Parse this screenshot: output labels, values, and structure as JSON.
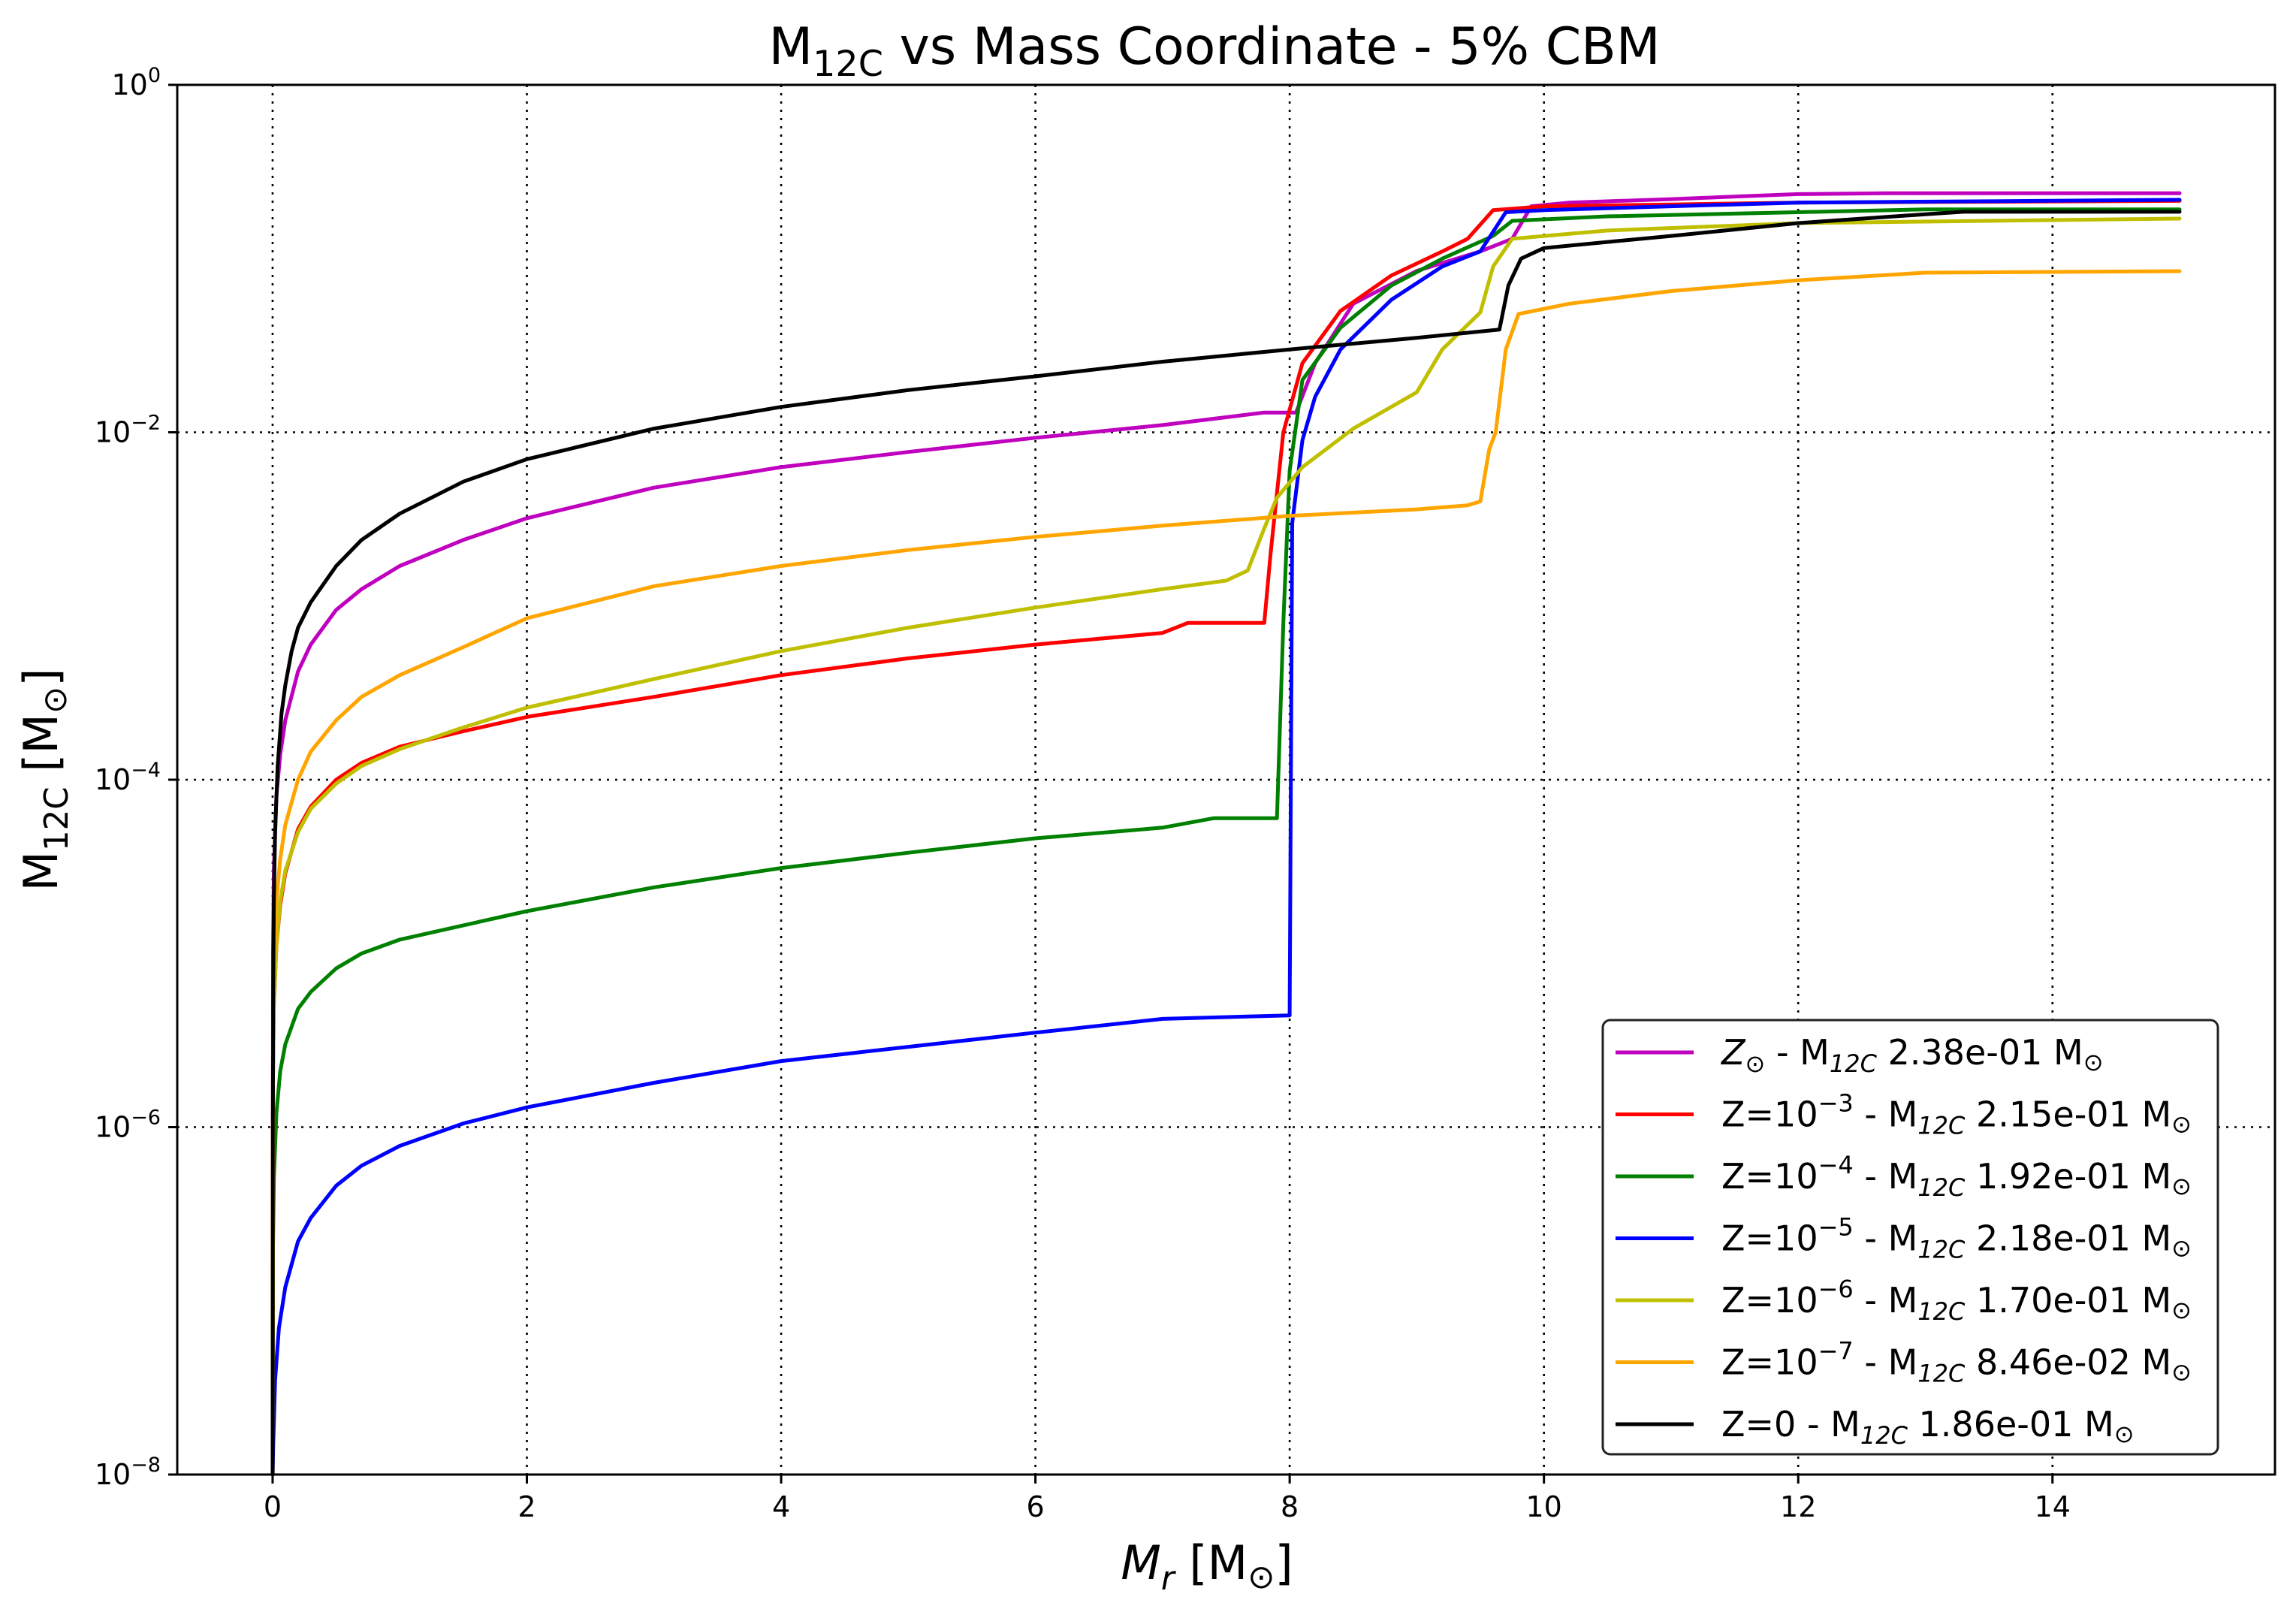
{
  "chart_data": {
    "type": "line",
    "title": {
      "base": "M",
      "sub": "12C",
      "rest": " vs Mass Coordinate - 5% CBM"
    },
    "xlabel": {
      "base": "M",
      "sub": "r",
      "rest": " [M",
      "sun": "⊙",
      "close": "]"
    },
    "ylabel": {
      "base": "M",
      "sub": "12C",
      "rest": " [M",
      "sun": "⊙",
      "close": "]"
    },
    "x_scale": "linear",
    "y_scale": "log",
    "xlim": [
      -0.75,
      15.75
    ],
    "ylim": [
      1e-08,
      1
    ],
    "x_ticks": [
      0,
      2,
      4,
      6,
      8,
      10,
      12,
      14
    ],
    "y_ticks": [
      {
        "value": 1e-08,
        "base": "10",
        "exp": "−8"
      },
      {
        "value": 1e-06,
        "base": "10",
        "exp": "−6"
      },
      {
        "value": 0.0001,
        "base": "10",
        "exp": "−4"
      },
      {
        "value": 0.01,
        "base": "10",
        "exp": "−2"
      },
      {
        "value": 1,
        "base": "10",
        "exp": "0"
      }
    ],
    "grid": true,
    "legend_position": "lower-right",
    "series": [
      {
        "name": "Z⊙ - M12C 2.38e-01 M⊙",
        "legend": {
          "prefix": "Z",
          "prefix_sub": "⊙",
          "exp": "",
          "mid": " - M",
          "mid_sub": "12C",
          "value": " 2.38e-01 M",
          "sun": "⊙"
        },
        "color": "#bf00bf",
        "x": [
          0.0,
          0.003,
          0.01,
          0.03,
          0.06,
          0.1,
          0.2,
          0.3,
          0.5,
          0.7,
          1.0,
          1.5,
          2.0,
          3.0,
          4.0,
          5.0,
          6.0,
          7.0,
          7.8,
          8.05,
          8.2,
          8.5,
          9.0,
          9.5,
          9.75,
          9.9,
          10.2,
          11.0,
          12.0,
          12.7,
          15.0
        ],
        "y": [
          1e-08,
          1e-05,
          3e-05,
          8e-05,
          0.00014,
          0.00022,
          0.00042,
          0.0006,
          0.00095,
          0.00125,
          0.0017,
          0.0024,
          0.0032,
          0.0048,
          0.0063,
          0.0077,
          0.0093,
          0.011,
          0.013,
          0.013,
          0.025,
          0.055,
          0.085,
          0.11,
          0.13,
          0.2,
          0.21,
          0.22,
          0.235,
          0.238,
          0.238
        ]
      },
      {
        "name": "Z=10−3 - M12C 2.15e-01 M⊙",
        "legend": {
          "prefix": "Z=10",
          "prefix_sub": "",
          "exp": "−3",
          "mid": " - M",
          "mid_sub": "12C",
          "value": " 2.15e-01 M",
          "sun": "⊙"
        },
        "color": "#ff0000",
        "x": [
          0.0,
          0.003,
          0.01,
          0.03,
          0.06,
          0.1,
          0.2,
          0.3,
          0.5,
          0.7,
          1.0,
          1.5,
          2.0,
          3.0,
          4.0,
          5.0,
          6.0,
          7.0,
          7.2,
          7.8,
          7.85,
          7.95,
          8.1,
          8.4,
          8.8,
          9.2,
          9.4,
          9.6,
          10.0,
          11.0,
          12.0,
          15.0
        ],
        "y": [
          1e-08,
          2e-06,
          5e-06,
          1.1e-05,
          1.9e-05,
          2.9e-05,
          5.2e-05,
          7e-05,
          0.0001,
          0.000125,
          0.000155,
          0.00019,
          0.00023,
          0.0003,
          0.0004,
          0.0005,
          0.0006,
          0.0007,
          0.0008,
          0.0008,
          0.002,
          0.01,
          0.025,
          0.05,
          0.08,
          0.11,
          0.13,
          0.19,
          0.2,
          0.205,
          0.21,
          0.215
        ]
      },
      {
        "name": "Z=10−4 - M12C 1.92e-01 M⊙",
        "legend": {
          "prefix": "Z=10",
          "prefix_sub": "",
          "exp": "−4",
          "mid": " - M",
          "mid_sub": "12C",
          "value": " 1.92e-01 M",
          "sun": "⊙"
        },
        "color": "#008000",
        "x": [
          0.0,
          0.003,
          0.01,
          0.03,
          0.06,
          0.1,
          0.2,
          0.3,
          0.5,
          0.7,
          1.0,
          1.5,
          2.0,
          3.0,
          4.0,
          5.0,
          6.0,
          7.0,
          7.4,
          7.9,
          7.95,
          8.0,
          8.1,
          8.4,
          8.8,
          9.2,
          9.6,
          9.75,
          10.5,
          12.0,
          13.0,
          15.0
        ],
        "y": [
          1e-08,
          2e-07,
          5e-07,
          1.2e-06,
          2.1e-06,
          3e-06,
          4.8e-06,
          6e-06,
          8.2e-06,
          1e-05,
          1.2e-05,
          1.45e-05,
          1.75e-05,
          2.4e-05,
          3.1e-05,
          3.8e-05,
          4.6e-05,
          5.3e-05,
          6e-05,
          6e-05,
          0.0008,
          0.006,
          0.02,
          0.04,
          0.07,
          0.1,
          0.135,
          0.165,
          0.175,
          0.185,
          0.192,
          0.192
        ]
      },
      {
        "name": "Z=10−5 - M12C 2.18e-01 M⊙",
        "legend": {
          "prefix": "Z=10",
          "prefix_sub": "",
          "exp": "−5",
          "mid": " - M",
          "mid_sub": "12C",
          "value": " 2.18e-01 M",
          "sun": "⊙"
        },
        "color": "#0000ff",
        "x": [
          0.0,
          0.005,
          0.02,
          0.05,
          0.1,
          0.2,
          0.3,
          0.5,
          0.7,
          1.0,
          1.5,
          2.0,
          3.0,
          4.0,
          5.0,
          6.0,
          7.0,
          8.0,
          8.02,
          8.1,
          8.2,
          8.4,
          8.8,
          9.2,
          9.5,
          9.7,
          10.0,
          11.0,
          12.0,
          15.0
        ],
        "y": [
          1e-08,
          1.5e-08,
          3.5e-08,
          7e-08,
          1.2e-07,
          2.2e-07,
          3e-07,
          4.6e-07,
          6e-07,
          7.8e-07,
          1.05e-06,
          1.3e-06,
          1.8e-06,
          2.4e-06,
          2.9e-06,
          3.5e-06,
          4.2e-06,
          4.4e-06,
          0.003,
          0.009,
          0.016,
          0.03,
          0.058,
          0.09,
          0.11,
          0.185,
          0.19,
          0.2,
          0.21,
          0.218
        ]
      },
      {
        "name": "Z=10−6 - M12C 1.70e-01 M⊙",
        "legend": {
          "prefix": "Z=10",
          "prefix_sub": "",
          "exp": "−6",
          "mid": " - M",
          "mid_sub": "12C",
          "value": " 1.70e-01 M",
          "sun": "⊙"
        },
        "color": "#bfbf00",
        "x": [
          0.0,
          0.003,
          0.01,
          0.03,
          0.06,
          0.1,
          0.2,
          0.3,
          0.5,
          0.7,
          1.0,
          1.5,
          2.0,
          3.0,
          4.0,
          5.0,
          6.0,
          7.0,
          7.5,
          7.67,
          7.8,
          7.9,
          8.1,
          8.5,
          9.0,
          9.2,
          9.5,
          9.6,
          9.75,
          10.5,
          12.0,
          15.0
        ],
        "y": [
          1e-08,
          2e-06,
          5e-06,
          1.1e-05,
          2e-05,
          3e-05,
          5e-05,
          6.8e-05,
          9.5e-05,
          0.00012,
          0.00015,
          0.0002,
          0.00026,
          0.00038,
          0.00055,
          0.00075,
          0.00098,
          0.00125,
          0.0014,
          0.0016,
          0.0028,
          0.0042,
          0.0063,
          0.0105,
          0.017,
          0.03,
          0.049,
          0.09,
          0.13,
          0.145,
          0.16,
          0.17
        ]
      },
      {
        "name": "Z=10−7 - M12C 8.46e-02 M⊙",
        "legend": {
          "prefix": "Z=10",
          "prefix_sub": "",
          "exp": "−7",
          "mid": " - M",
          "mid_sub": "12C",
          "value": " 8.46e-02 M",
          "sun": "⊙"
        },
        "color": "#ffa500",
        "x": [
          0.0,
          0.003,
          0.01,
          0.03,
          0.06,
          0.1,
          0.2,
          0.3,
          0.5,
          0.7,
          1.0,
          1.5,
          2.0,
          3.0,
          4.0,
          5.0,
          6.0,
          7.0,
          8.0,
          9.0,
          9.4,
          9.5,
          9.57,
          9.62,
          9.7,
          9.8,
          10.2,
          11.0,
          12.0,
          13.0,
          15.0
        ],
        "y": [
          1e-08,
          3e-06,
          8e-06,
          2e-05,
          3.5e-05,
          5.5e-05,
          0.0001,
          0.000145,
          0.00022,
          0.0003,
          0.0004,
          0.00058,
          0.00085,
          0.0013,
          0.0017,
          0.0021,
          0.0025,
          0.0029,
          0.0033,
          0.0036,
          0.0038,
          0.004,
          0.008,
          0.01,
          0.03,
          0.048,
          0.055,
          0.065,
          0.075,
          0.083,
          0.0846
        ]
      },
      {
        "name": "Z=0 - M12C 1.86e-01 M⊙",
        "legend": {
          "prefix": "Z=0",
          "prefix_sub": "",
          "exp": "",
          "mid": " - M",
          "mid_sub": "12C",
          "value": " 1.86e-01 M",
          "sun": "⊙"
        },
        "color": "#000000",
        "x": [
          0.0,
          0.002,
          0.005,
          0.01,
          0.02,
          0.04,
          0.07,
          0.1,
          0.15,
          0.2,
          0.3,
          0.5,
          0.7,
          1.0,
          1.5,
          2.0,
          3.0,
          4.0,
          5.0,
          6.0,
          7.0,
          8.0,
          9.0,
          9.65,
          9.72,
          9.82,
          10.0,
          11.0,
          12.0,
          13.0,
          13.3,
          15.0
        ],
        "y": [
          1e-08,
          1e-06,
          6e-06,
          2e-05,
          5e-05,
          0.00012,
          0.00024,
          0.00035,
          0.00055,
          0.00075,
          0.00105,
          0.0017,
          0.0024,
          0.0034,
          0.0052,
          0.007,
          0.0105,
          0.014,
          0.0175,
          0.021,
          0.0255,
          0.03,
          0.035,
          0.039,
          0.07,
          0.1,
          0.115,
          0.135,
          0.16,
          0.18,
          0.186,
          0.186
        ]
      }
    ]
  }
}
